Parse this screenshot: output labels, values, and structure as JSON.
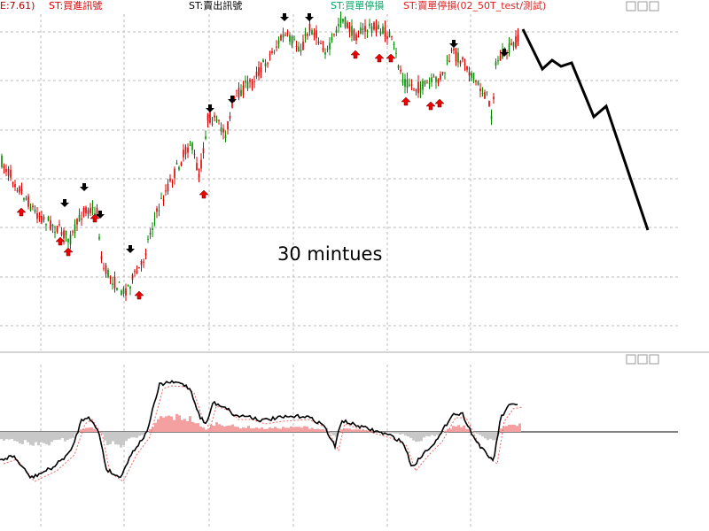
{
  "header": {
    "labels": [
      "E:7.61)",
      "ST:買進訊號",
      "ST:賣出訊號",
      "ST:買單停損",
      "ST:賣單停損(02_50T_test/測試)"
    ]
  },
  "annotation": "30 mintues"
}
